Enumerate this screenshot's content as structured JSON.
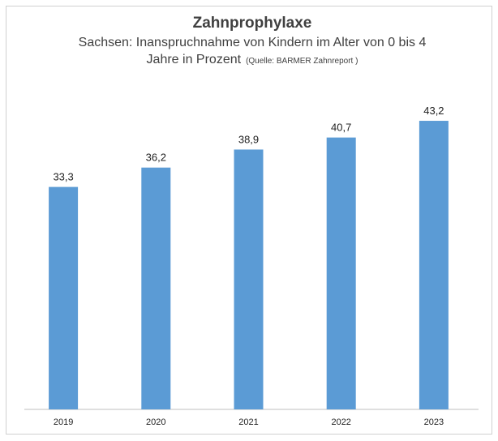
{
  "chart_data": {
    "type": "bar",
    "title": "Zahnprophylaxe",
    "subtitle": "Sachsen: Inanspruchnahme von Kindern im Alter von 0 bis 4 Jahre in Prozent",
    "source": "(Quelle: BARMER Zahnreport )",
    "categories": [
      "2019",
      "2020",
      "2021",
      "2022",
      "2023"
    ],
    "values": [
      33.3,
      36.2,
      38.9,
      40.7,
      43.2
    ],
    "value_labels": [
      "33,3",
      "36,2",
      "38,9",
      "40,7",
      "43,2"
    ],
    "color": "#5b9bd5"
  }
}
